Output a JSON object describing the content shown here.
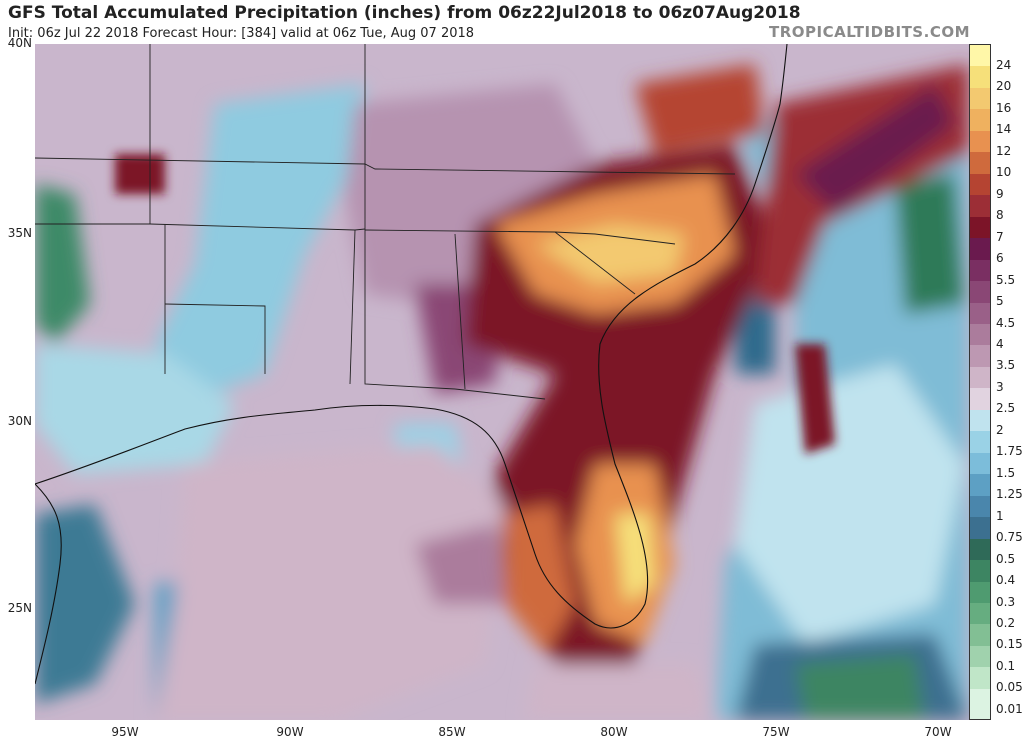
{
  "header": {
    "title": "GFS Total Accumulated Precipitation (inches) from 06z22Jul2018 to 06z07Aug2018",
    "subtitle": "Init: 06z Jul 22 2018   Forecast Hour: [384]   valid at 06z Tue, Aug 07 2018",
    "brand": "TROPICALTIDBITS.COM"
  },
  "axes": {
    "lat_labels": [
      "40N",
      "35N",
      "30N",
      "25N"
    ],
    "lon_labels": [
      "95W",
      "90W",
      "85W",
      "80W",
      "75W",
      "70W"
    ]
  },
  "legend": {
    "labels": [
      "24",
      "20",
      "16",
      "14",
      "12",
      "10",
      "9",
      "8",
      "7",
      "6",
      "5.5",
      "5",
      "4.5",
      "4",
      "3.5",
      "3",
      "2.5",
      "2",
      "1.75",
      "1.5",
      "1.25",
      "1",
      "0.75",
      "0.5",
      "0.4",
      "0.3",
      "0.2",
      "0.15",
      "0.1",
      "0.05",
      "0.01"
    ],
    "colors": [
      "#fff7a8",
      "#f6e07a",
      "#f3c970",
      "#efb15f",
      "#e89150",
      "#cf6a3d",
      "#b54432",
      "#9c2e36",
      "#7c1428",
      "#6a1a4e",
      "#7a2f62",
      "#8a4775",
      "#9a6088",
      "#ab7c9c",
      "#bd98b2",
      "#cfb5c8",
      "#e1d3e0",
      "#c0e3ee",
      "#9ad2e6",
      "#7cbdda",
      "#5da0c4",
      "#4a86ac",
      "#3c7090",
      "#2f6a58",
      "#3d8562",
      "#4f9b70",
      "#66ad80",
      "#82bf94",
      "#a0d2ad",
      "#c0e6c8",
      "#dcf3e2"
    ]
  }
}
